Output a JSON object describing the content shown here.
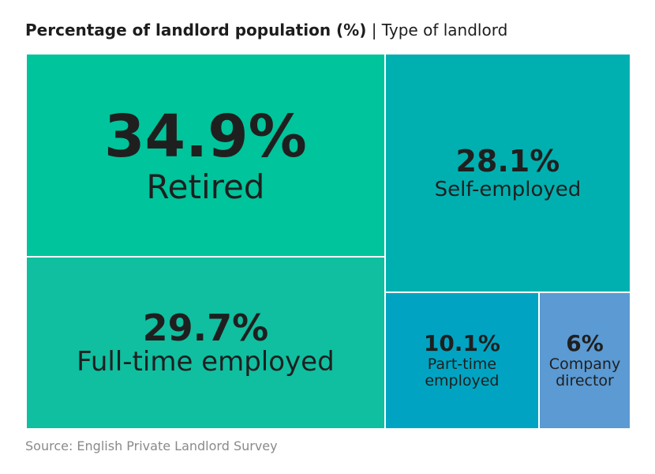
{
  "chart_data": {
    "type": "treemap",
    "title": "Percentage of landlord population (%)",
    "subtitle": "| Type of landlord",
    "source": "Source: English Private Landlord Survey",
    "categories": [
      "Retired",
      "Full-time employed",
      "Self-employed",
      "Part-time employed",
      "Company director"
    ],
    "values": [
      34.9,
      29.7,
      28.1,
      10.1,
      6
    ],
    "value_labels": [
      "34.9%",
      "29.7%",
      "28.1%",
      "10.1%",
      "6%"
    ],
    "colors": [
      "#00c49b",
      "#0fbfa0",
      "#00b0b0",
      "#00a4c2",
      "#5b9ad3"
    ]
  }
}
